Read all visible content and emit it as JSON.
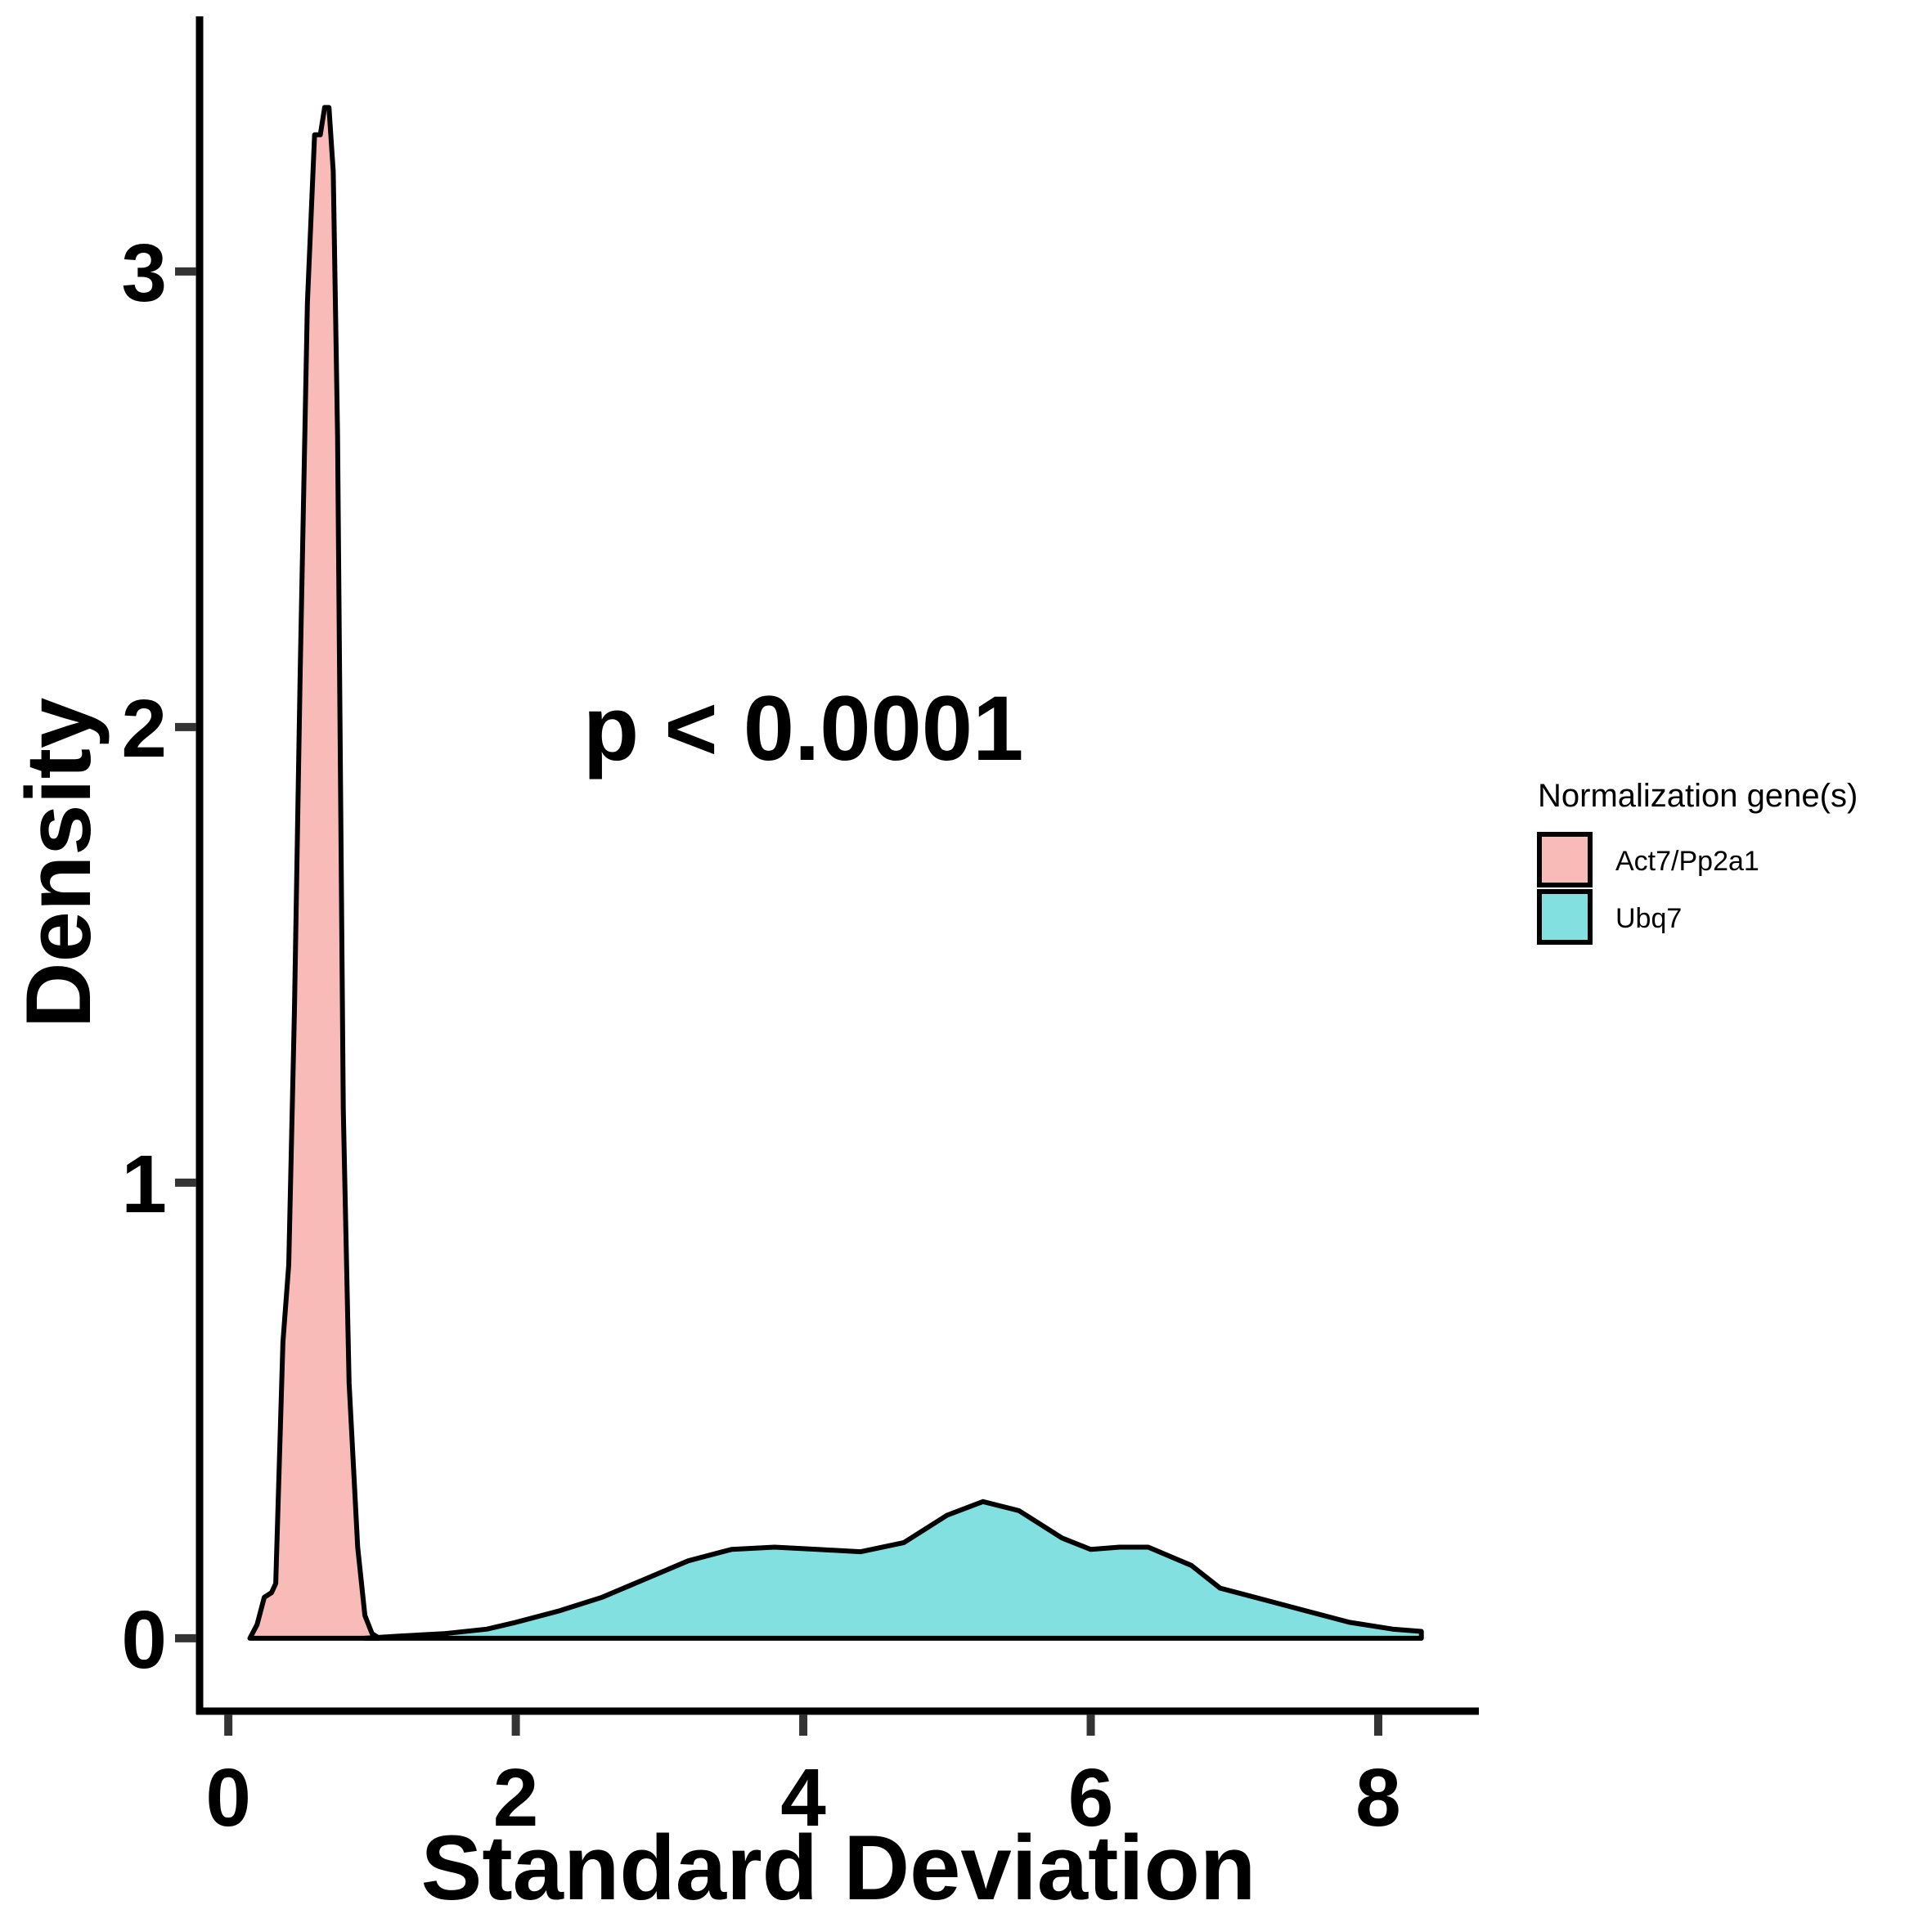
{
  "chart_data": {
    "type": "area",
    "xlabel": "Standard Deviation",
    "ylabel": "Density",
    "xlim": [
      -0.2,
      8.7
    ],
    "ylim": [
      -0.16,
      3.56
    ],
    "x_ticks": [
      0,
      2,
      4,
      6,
      8
    ],
    "y_ticks": [
      0,
      1,
      2,
      3
    ],
    "annotation": {
      "text": "p < 0.0001",
      "x": 4.0,
      "y": 2.0
    },
    "legend": {
      "title": "Normalization gene(s)",
      "position": "right"
    },
    "series": [
      {
        "name": "Act7/Pp2a1",
        "color": "#F8BBB7",
        "points": [
          [
            0.15,
            0
          ],
          [
            0.2,
            0.03
          ],
          [
            0.25,
            0.09
          ],
          [
            0.3,
            0.1
          ],
          [
            0.33,
            0.12
          ],
          [
            0.38,
            0.65
          ],
          [
            0.42,
            0.82
          ],
          [
            0.46,
            1.38
          ],
          [
            0.5,
            2.12
          ],
          [
            0.55,
            2.93
          ],
          [
            0.6,
            3.3
          ],
          [
            0.64,
            3.3
          ],
          [
            0.67,
            3.36
          ],
          [
            0.7,
            3.36
          ],
          [
            0.73,
            3.22
          ],
          [
            0.76,
            2.64
          ],
          [
            0.8,
            1.16
          ],
          [
            0.84,
            0.56
          ],
          [
            0.9,
            0.2
          ],
          [
            0.95,
            0.05
          ],
          [
            1.0,
            0.01
          ],
          [
            1.05,
            0
          ]
        ]
      },
      {
        "name": "Ubq7",
        "color": "#82E0E0",
        "points": [
          [
            0.95,
            0
          ],
          [
            1.2,
            0.005
          ],
          [
            1.5,
            0.01
          ],
          [
            1.8,
            0.02
          ],
          [
            2.0,
            0.035
          ],
          [
            2.3,
            0.06
          ],
          [
            2.6,
            0.09
          ],
          [
            2.9,
            0.13
          ],
          [
            3.2,
            0.17
          ],
          [
            3.5,
            0.195
          ],
          [
            3.8,
            0.2
          ],
          [
            4.1,
            0.195
          ],
          [
            4.4,
            0.19
          ],
          [
            4.7,
            0.21
          ],
          [
            5.0,
            0.27
          ],
          [
            5.25,
            0.3
          ],
          [
            5.5,
            0.28
          ],
          [
            5.8,
            0.22
          ],
          [
            6.0,
            0.195
          ],
          [
            6.2,
            0.2
          ],
          [
            6.4,
            0.2
          ],
          [
            6.7,
            0.16
          ],
          [
            6.9,
            0.11
          ],
          [
            7.2,
            0.085
          ],
          [
            7.5,
            0.06
          ],
          [
            7.8,
            0.035
          ],
          [
            8.1,
            0.02
          ],
          [
            8.3,
            0.015
          ]
        ]
      }
    ]
  }
}
